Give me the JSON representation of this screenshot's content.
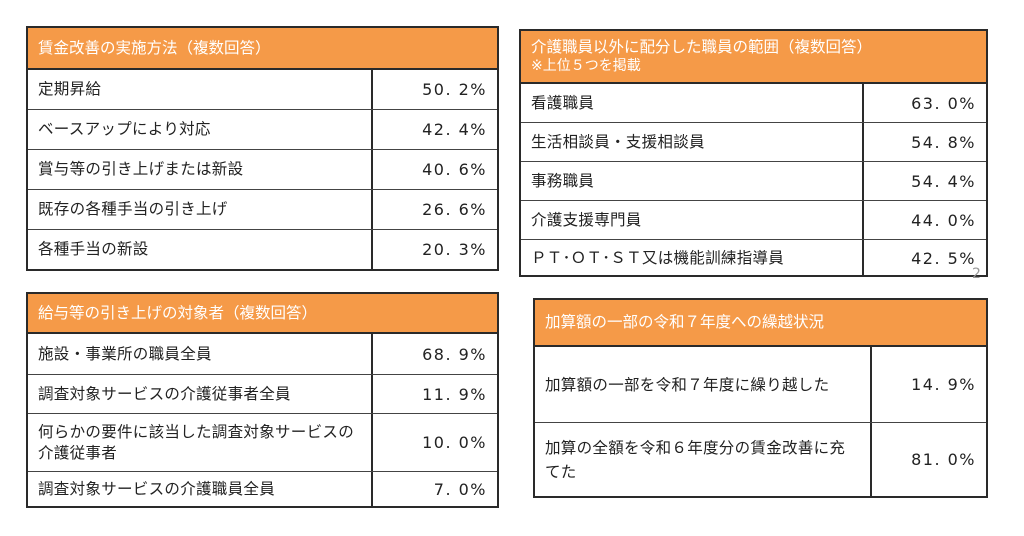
{
  "colors": {
    "header": "#f59a48",
    "border": "#2a2a2a"
  },
  "tables": [
    {
      "title": "賃金改善の実施方法（複数回答）",
      "rows": [
        {
          "label": "定期昇給",
          "value": "50. 2%"
        },
        {
          "label": "ベースアップにより対応",
          "value": "42. 4%"
        },
        {
          "label": "賞与等の引き上げまたは新設",
          "value": "40. 6%"
        },
        {
          "label": "既存の各種手当の引き上げ",
          "value": "26. 6%"
        },
        {
          "label": "各種手当の新設",
          "value": "20. 3%"
        }
      ]
    },
    {
      "title": "給与等の引き上げの対象者（複数回答）",
      "rows": [
        {
          "label": "施設・事業所の職員全員",
          "value": "68. 9%"
        },
        {
          "label": "調査対象サービスの介護従事者全員",
          "value": "11. 9%"
        },
        {
          "label": "何らかの要件に該当した調査対象サービスの介護従事者",
          "value": "10. 0%"
        },
        {
          "label": "調査対象サービスの介護職員全員",
          "value": "7. 0%"
        }
      ]
    },
    {
      "title": "介護職員以外に配分した職員の範囲（複数回答）",
      "subtitle": "※上位５つを掲載",
      "rows": [
        {
          "label": "看護職員",
          "value": "63. 0%"
        },
        {
          "label": "生活相談員・支援相談員",
          "value": "54. 8%"
        },
        {
          "label": "事務職員",
          "value": "54. 4%"
        },
        {
          "label": "介護支援専門員",
          "value": "44. 0%"
        },
        {
          "label": "ＰＴ･ＯＴ･ＳＴ又は機能訓練指導員",
          "value": "42. 5%"
        }
      ]
    },
    {
      "title": "加算額の一部の令和７年度への繰越状況",
      "rows": [
        {
          "label": "加算額の一部を令和７年度に繰り越した",
          "value": "14. 9%"
        },
        {
          "label": "加算の全額を令和６年度分の賃金改善に充てた",
          "value": "81. 0%"
        }
      ]
    }
  ],
  "page_number": "2"
}
